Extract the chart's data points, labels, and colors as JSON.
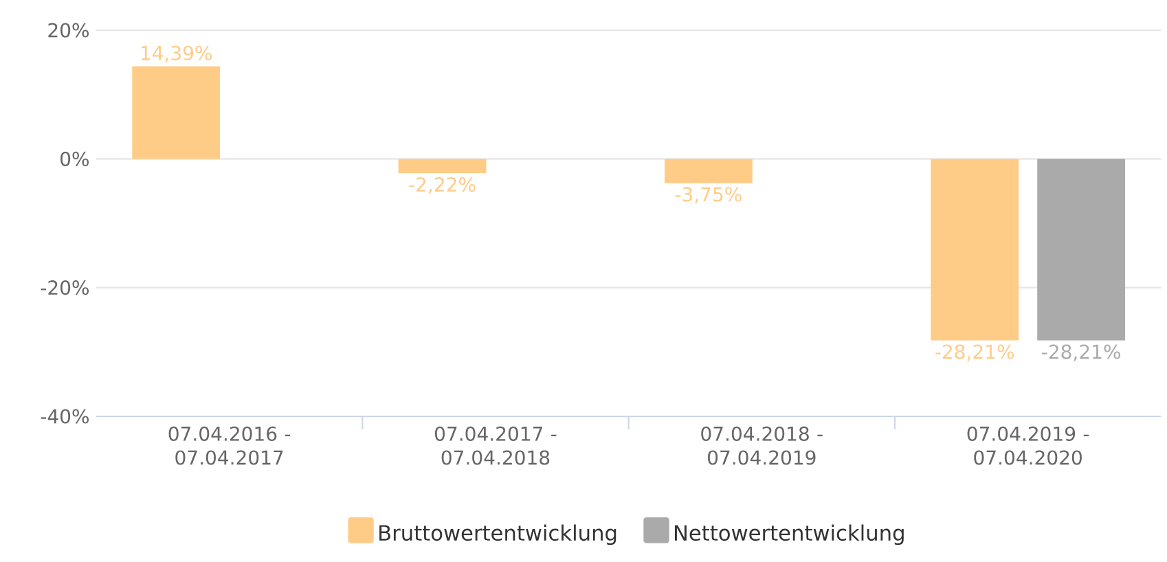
{
  "chart_data": {
    "type": "bar",
    "categories": [
      "07.04.2016 - 07.04.2017",
      "07.04.2017 - 07.04.2018",
      "07.04.2018 - 07.04.2019",
      "07.04.2019 - 07.04.2020"
    ],
    "series": [
      {
        "name": "Bruttowertentwicklung",
        "color": "#ffcc88",
        "values": [
          14.39,
          -2.22,
          -3.75,
          -28.21
        ],
        "value_labels": [
          "14,39%",
          "-2,22%",
          "-3,75%",
          "-28,21%"
        ]
      },
      {
        "name": "Nettowertentwicklung",
        "color": "#aaaaaa",
        "values": [
          null,
          null,
          null,
          -28.21
        ],
        "value_labels": [
          null,
          null,
          null,
          "-28,21%"
        ]
      }
    ],
    "ylim": [
      -40,
      20
    ],
    "yticks": [
      {
        "value": -40,
        "label": "-40%"
      },
      {
        "value": -20,
        "label": "-20%"
      },
      {
        "value": 0,
        "label": "0%"
      },
      {
        "value": 20,
        "label": "20%"
      }
    ],
    "grid": "y",
    "legend": "bottom"
  }
}
